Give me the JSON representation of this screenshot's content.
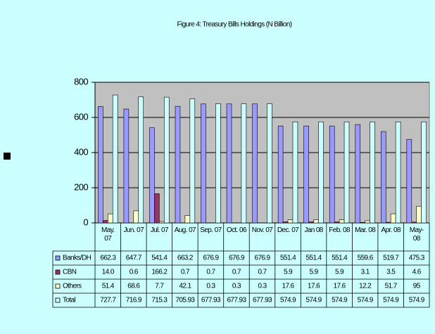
{
  "chart_data": {
    "type": "bar",
    "title": "Figure 4: Treasury Bills Holdings (N Billion)",
    "categories": [
      "May. 07",
      "Jun. 07",
      "Jul. 07",
      "Aug. 07",
      "Sep. 07",
      "Oct. 06",
      "Nov. 07",
      "Dec. 07",
      "Jan 08",
      "Feb. 08",
      "Mar. 08",
      "Apr. 08",
      "May- 08"
    ],
    "series": [
      {
        "name": "Banks/DH",
        "color": "#9999ff",
        "values": [
          662.3,
          647.7,
          541.4,
          663.2,
          676.9,
          676.9,
          676.9,
          551.4,
          551.4,
          551.4,
          559.6,
          519.7,
          475.3
        ]
      },
      {
        "name": "CBN",
        "color": "#993366",
        "values": [
          14.0,
          0.6,
          166.2,
          0.7,
          0.7,
          0.7,
          0.7,
          5.9,
          5.9,
          5.9,
          3.1,
          3.5,
          4.6
        ],
        "value_labels": [
          "14.0",
          "0.6",
          "166.2",
          "0.7",
          "0.7",
          "0.7",
          "0.7",
          "5.9",
          "5.9",
          "5.9",
          "3.1",
          "3.5",
          "4.6"
        ]
      },
      {
        "name": "Others",
        "color": "#ffffcc",
        "values": [
          51.4,
          68.6,
          7.7,
          42.1,
          0.3,
          0.3,
          0.3,
          17.6,
          17.6,
          17.6,
          12.2,
          51.7,
          95
        ]
      },
      {
        "name": "Total",
        "color": "#ccffff",
        "values": [
          727.7,
          716.9,
          715.3,
          705.93,
          677.93,
          677.93,
          677.93,
          574.9,
          574.9,
          574.9,
          574.9,
          574.9,
          574.9
        ]
      }
    ],
    "ylim": [
      0,
      800
    ],
    "yticks": [
      0,
      200,
      400,
      600,
      800
    ],
    "grid": true
  }
}
